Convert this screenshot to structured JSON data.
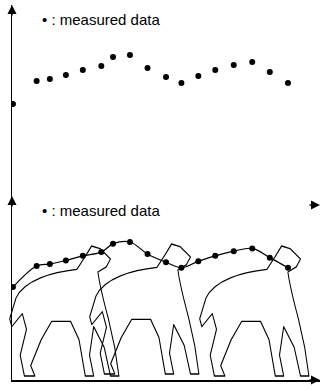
{
  "chart_data": [
    {
      "type": "scatter",
      "annotation": "• : measured data",
      "x": [
        0.03,
        0.8,
        1.23,
        1.75,
        2.3,
        2.9,
        3.28,
        3.83,
        4.4,
        5.0,
        5.5,
        6.05,
        6.6,
        7.2,
        7.8,
        8.37,
        8.96
      ],
      "values": [
        5.05,
        6.2,
        6.3,
        6.5,
        6.75,
        6.95,
        7.4,
        7.5,
        6.85,
        6.4,
        6.1,
        6.45,
        6.75,
        7.0,
        7.15,
        6.65,
        6.1
      ],
      "xlim": [
        0,
        10
      ],
      "ylim": [
        0,
        10
      ],
      "tick_labels": false,
      "color": "#000000",
      "marker": "circle"
    },
    {
      "type": "line",
      "annotation": "• : measured data",
      "x": [
        0.03,
        0.8,
        1.23,
        1.75,
        2.3,
        2.9,
        3.28,
        3.83,
        4.4,
        5.0,
        5.5,
        6.05,
        6.6,
        7.2,
        7.8,
        8.37,
        8.96
      ],
      "values": [
        5.05,
        6.2,
        6.3,
        6.5,
        6.75,
        6.95,
        7.4,
        7.5,
        6.85,
        6.4,
        6.1,
        6.45,
        6.75,
        7.0,
        7.15,
        6.65,
        6.1
      ],
      "xlim": [
        0,
        10
      ],
      "ylim": [
        0,
        10
      ],
      "tick_labels": false,
      "color": "#000000",
      "marker": "circle",
      "line_style": "solid"
    }
  ]
}
